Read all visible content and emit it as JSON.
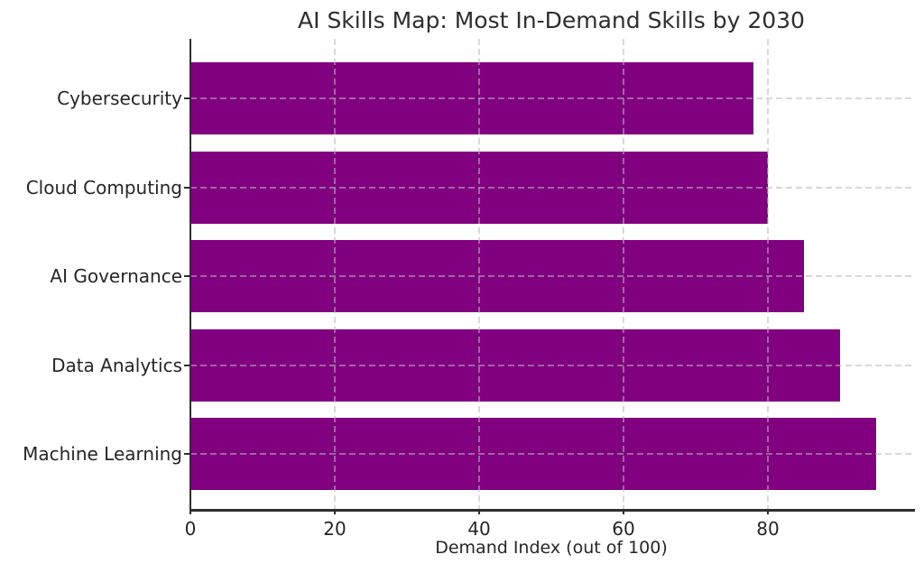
{
  "figure": {
    "background": "#ffffff"
  },
  "chart_data": {
    "type": "bar",
    "orientation": "horizontal",
    "title": "AI Skills Map: Most In-Demand Skills by 2030",
    "categories": [
      "Cybersecurity",
      "Cloud Computing",
      "AI Governance",
      "Data Analytics",
      "Machine Learning"
    ],
    "values": [
      78,
      80,
      85,
      90,
      95
    ],
    "xlabel": "Demand Index (out of 100)",
    "ylabel": "",
    "xticks": [
      0,
      20,
      40,
      60,
      80
    ],
    "xlim": [
      0,
      100
    ],
    "bar_color": "#800080",
    "text_color": "#262626",
    "grid": {
      "style": "dashed",
      "axes": "both",
      "layer": "above-bars"
    },
    "legend": "none"
  }
}
